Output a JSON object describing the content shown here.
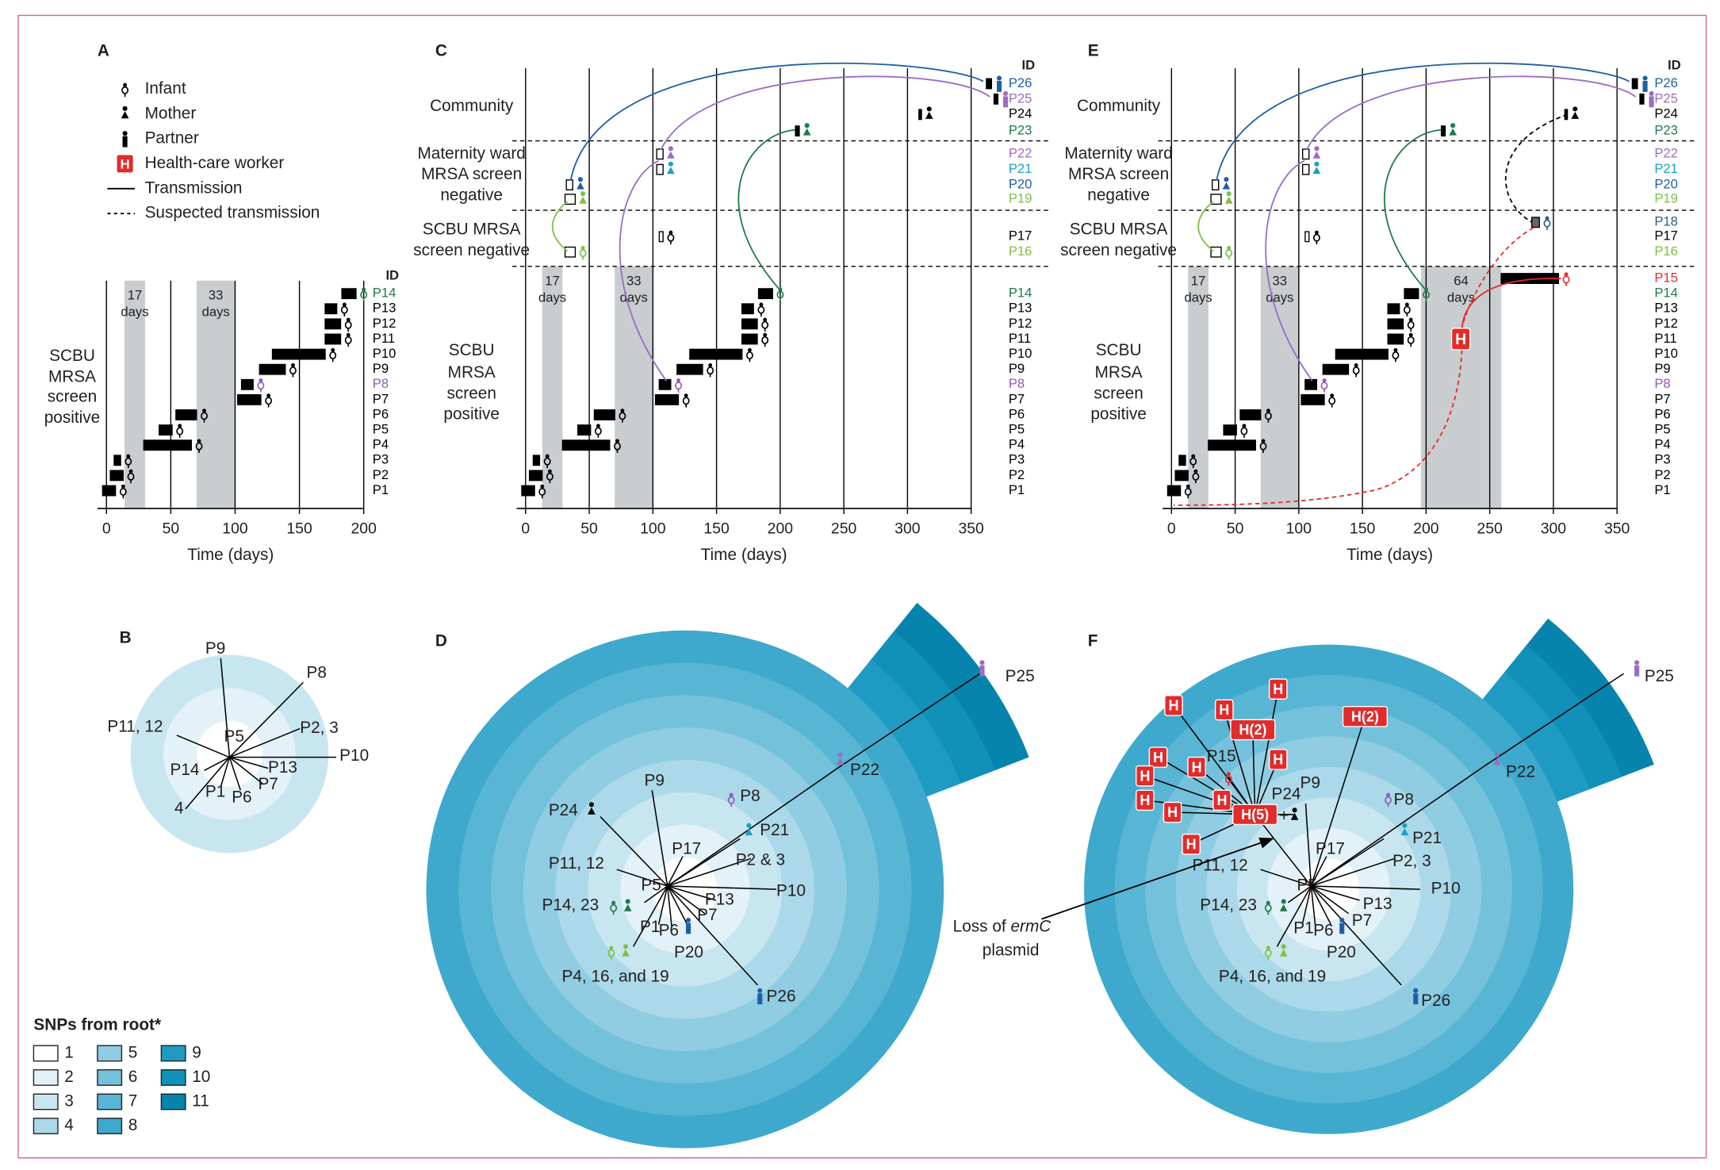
{
  "panel_letters": [
    "A",
    "B",
    "C",
    "D",
    "E",
    "F"
  ],
  "legend": {
    "items": [
      {
        "label": "Infant",
        "icon": "infant"
      },
      {
        "label": "Mother",
        "icon": "mother"
      },
      {
        "label": "Partner",
        "icon": "partner"
      },
      {
        "label": "Health-care worker",
        "icon": "hcw"
      },
      {
        "label": "Transmission",
        "icon": "line"
      },
      {
        "label": "Suspected transmission",
        "icon": "dashed"
      }
    ],
    "hcw_text": "H"
  },
  "timeline": {
    "id_header": "ID",
    "x_label": "Time (days)",
    "patients": [
      {
        "id": "P1",
        "color": "#000000",
        "icon": "infant",
        "start": -3,
        "end": 7,
        "box": "black"
      },
      {
        "id": "P2",
        "color": "#000000",
        "icon": "infant",
        "start": 3,
        "end": 13,
        "box": "black"
      },
      {
        "id": "P3",
        "color": "#000000",
        "icon": "infant",
        "start": 6,
        "end": 11,
        "box": "black"
      },
      {
        "id": "P4",
        "color": "#000000",
        "icon": "infant",
        "start": 29,
        "end": 66,
        "box": "black"
      },
      {
        "id": "P5",
        "color": "#000000",
        "icon": "infant",
        "start": 41,
        "end": 51,
        "box": "black"
      },
      {
        "id": "P6",
        "color": "#000000",
        "icon": "infant",
        "start": 54,
        "end": 70,
        "box": "black"
      },
      {
        "id": "P7",
        "color": "#000000",
        "icon": "infant",
        "start": 102,
        "end": 120,
        "box": "black"
      },
      {
        "id": "P8",
        "color": "#8e5bb5",
        "icon": "infant",
        "start": 105,
        "end": 114,
        "box": "black"
      },
      {
        "id": "P9",
        "color": "#000000",
        "icon": "infant",
        "start": 119,
        "end": 139,
        "box": "black"
      },
      {
        "id": "P10",
        "color": "#000000",
        "icon": "infant",
        "start": 129,
        "end": 170,
        "box": "black"
      },
      {
        "id": "P11",
        "color": "#000000",
        "icon": "infant",
        "start": 170,
        "end": 182,
        "box": "black"
      },
      {
        "id": "P12",
        "color": "#000000",
        "icon": "infant",
        "start": 170,
        "end": 182,
        "box": "black"
      },
      {
        "id": "P13",
        "color": "#000000",
        "icon": "infant",
        "start": 170,
        "end": 179,
        "box": "black"
      },
      {
        "id": "P14",
        "color": "#1e7b4a",
        "icon": "infant",
        "start": 183,
        "end": 194,
        "box": "black"
      },
      {
        "id": "P15",
        "color": "#e32b2b",
        "icon": "infant",
        "start": 259,
        "end": 304,
        "box": "black"
      },
      {
        "id": "P16",
        "color": "#7dc242",
        "icon": "infant",
        "start": 31,
        "end": 39,
        "box": "white"
      },
      {
        "id": "P17",
        "color": "#000000",
        "icon": "infant",
        "start": 105,
        "end": 108,
        "box": "white"
      },
      {
        "id": "P18",
        "color": "#2b5e8c",
        "icon": "infant",
        "start": 283,
        "end": 289,
        "box": "grey"
      },
      {
        "id": "P19",
        "color": "#7dc242",
        "icon": "mother",
        "start": 31,
        "end": 39,
        "box": "white"
      },
      {
        "id": "P20",
        "color": "#1f5fa8",
        "icon": "mother",
        "start": 32,
        "end": 37,
        "box": "white"
      },
      {
        "id": "P21",
        "color": "#1aa0c0",
        "icon": "mother",
        "start": 103,
        "end": 108,
        "box": "white"
      },
      {
        "id": "P22",
        "color": "#9b6cc4",
        "icon": "mother",
        "start": 103,
        "end": 108,
        "box": "white"
      },
      {
        "id": "P23",
        "color": "#1e7b4a",
        "icon": "mother",
        "start": 212,
        "end": 215,
        "box": "black"
      },
      {
        "id": "P24",
        "color": "#000000",
        "icon": "mother",
        "start": 309,
        "end": 311,
        "box": "black"
      },
      {
        "id": "P25",
        "color": "#9b6cc4",
        "icon": "partner",
        "start": 368,
        "end": 371,
        "box": "black"
      },
      {
        "id": "P26",
        "color": "#1f5fa8",
        "icon": "partner",
        "start": 362,
        "end": 366,
        "box": "black"
      }
    ],
    "panel_a": {
      "xlim": [
        -7,
        200
      ],
      "xticks": [
        0,
        50,
        100,
        150,
        200
      ],
      "grid": true,
      "ids": [
        "P14",
        "P13",
        "P12",
        "P11",
        "P10",
        "P9",
        "P8",
        "P7",
        "P6",
        "P5",
        "P4",
        "P3",
        "P2",
        "P1"
      ],
      "gaps": [
        {
          "lines": [
            "17",
            "days"
          ],
          "start": 14,
          "end": 30
        },
        {
          "lines": [
            "33",
            "days"
          ],
          "start": 70,
          "end": 100
        }
      ],
      "sections": [
        {
          "lines": [
            "SCBU",
            "MRSA",
            "screen",
            "positive"
          ]
        }
      ]
    },
    "panel_c": {
      "xlim": [
        -7,
        350
      ],
      "xticks": [
        0,
        50,
        100,
        150,
        200,
        250,
        300,
        350
      ],
      "grid": true,
      "ids": [
        "P26",
        "P25",
        "P24",
        "P23",
        "P22",
        "P21",
        "P20",
        "P19",
        "P17",
        "P16",
        "P14",
        "P13",
        "P12",
        "P11",
        "P10",
        "P9",
        "P8",
        "P7",
        "P6",
        "P5",
        "P4",
        "P3",
        "P2",
        "P1"
      ],
      "gaps": [
        {
          "lines": [
            "17",
            "days"
          ],
          "start": 13,
          "end": 29
        },
        {
          "lines": [
            "33",
            "days"
          ],
          "start": 70,
          "end": 100
        }
      ],
      "sections": [
        {
          "lines": [
            "Community"
          ]
        },
        {
          "lines": [
            "Maternity ward",
            "MRSA screen",
            "negative"
          ]
        },
        {
          "lines": [
            "SCBU MRSA",
            "screen negative"
          ]
        },
        {
          "lines": [
            "SCBU",
            "MRSA",
            "screen",
            "positive"
          ]
        }
      ]
    },
    "panel_e": {
      "xlim": [
        -7,
        350
      ],
      "xticks": [
        0,
        50,
        100,
        150,
        200,
        250,
        300,
        350
      ],
      "grid": true,
      "ids": [
        "P26",
        "P25",
        "P24",
        "P23",
        "P22",
        "P21",
        "P20",
        "P19",
        "P18",
        "P17",
        "P16",
        "P15",
        "P14",
        "P13",
        "P12",
        "P11",
        "P10",
        "P9",
        "P8",
        "P7",
        "P6",
        "P5",
        "P4",
        "P3",
        "P2",
        "P1"
      ],
      "gaps": [
        {
          "lines": [
            "17",
            "days"
          ],
          "start": 13,
          "end": 29
        },
        {
          "lines": [
            "33",
            "days"
          ],
          "start": 70,
          "end": 100
        },
        {
          "lines": [
            "64",
            "days"
          ],
          "start": 196,
          "end": 259
        }
      ],
      "sections": [
        {
          "lines": [
            "Community"
          ]
        },
        {
          "lines": [
            "Maternity ward",
            "MRSA screen",
            "negative"
          ]
        },
        {
          "lines": [
            "SCBU MRSA",
            "screen negative"
          ]
        },
        {
          "lines": [
            "SCBU",
            "MRSA",
            "screen",
            "positive"
          ]
        }
      ]
    }
  },
  "tree_b": {
    "labels": [
      "P9",
      "P8",
      "P11, 12",
      "P5",
      "P2, 3",
      "P10",
      "P14",
      "P13",
      "P7",
      "P1",
      "P6",
      "4"
    ]
  },
  "tree_d": {
    "labels": [
      "P9",
      "P8",
      "P24",
      "P21",
      "P11, 12",
      "P17",
      "P2 & 3",
      "P5",
      "P10",
      "P14, 23",
      "P13",
      "P1",
      "P6",
      "P7",
      "P20",
      "P4, 16, and 19",
      "P26",
      "P22",
      "P25"
    ]
  },
  "tree_f": {
    "labels": [
      "P15",
      "P9",
      "P24",
      "+",
      "P17",
      "P11, 12",
      "P2, 3",
      "P5",
      "P10",
      "P14, 23",
      "P13",
      "P7",
      "P1",
      "P6",
      "P20",
      "P4, 16, and 19",
      "P26",
      "P8",
      "P21",
      "P22",
      "P25"
    ],
    "hcw_boxes": [
      "H",
      "H",
      "H",
      "H(2)",
      "H(2)",
      "H",
      "H",
      "H",
      "H",
      "H",
      "H",
      "H",
      "H(5)",
      "H"
    ],
    "annotation": {
      "line1": [
        "Loss of ",
        "ermC"
      ],
      "line2": "plasmid"
    }
  },
  "snp_legend": {
    "title": "SNPs from root*",
    "levels": [
      1,
      2,
      3,
      4,
      5,
      6,
      7,
      8,
      9,
      10,
      11
    ],
    "colors": [
      "#ffffff",
      "#e3f2f8",
      "#c8e6f0",
      "#acd9e9",
      "#90cde2",
      "#74c1db",
      "#58b5d4",
      "#3ea9cc",
      "#1f9bc3",
      "#1190b9",
      "#0684ae"
    ]
  }
}
